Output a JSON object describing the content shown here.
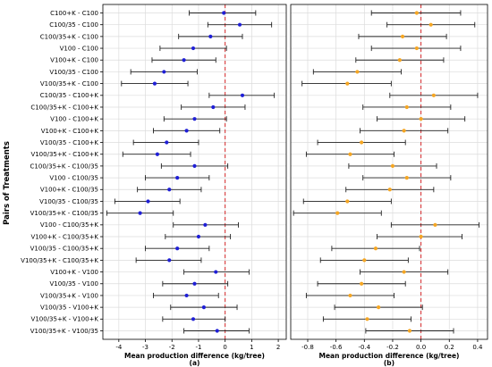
{
  "figure": {
    "ylabel": "Pairs of Treatments"
  },
  "chart_data": [
    {
      "type": "scatter",
      "panel_label": "(a)",
      "xlabel": "Mean production difference (kg/tree)",
      "xlim": [
        -4.6,
        2.3
      ],
      "xticks": [
        -4,
        -3,
        -2,
        -1,
        0,
        1,
        2
      ],
      "grid": true,
      "reference_line": 0,
      "reference_line_color": "#d62728",
      "marker_color": "#1f1fd6",
      "errorbar_color": "#222222",
      "categories": [
        "C100+K - C100",
        "C100/35 - C100",
        "C100/35+K - C100",
        "V100 - C100",
        "V100+K - C100",
        "V100/35 - C100",
        "V100/35+K - C100",
        "C100/35 - C100+K",
        "C100/35+K - C100+K",
        "V100 - C100+K",
        "V100+K - C100+K",
        "V100/35 - C100+K",
        "V100/35+K - C100+K",
        "C100/35+K - C100/35",
        "V100 - C100/35",
        "V100+K - C100/35",
        "V100/35 - C100/35",
        "V100/35+K - C100/35",
        "V100 - C100/35+K",
        "V100+K - C100/35+K",
        "V100/35 - C100/35+K",
        "V100/35+K - C100/35+K",
        "V100+K - V100",
        "V100/35 - V100",
        "V100/35+K - V100",
        "V100/35 - V100+K",
        "V100/35+K - V100+K",
        "V100/35+K - V100/35"
      ],
      "means": [
        -0.05,
        0.55,
        -0.55,
        -1.2,
        -1.55,
        -2.3,
        -2.65,
        0.65,
        -0.45,
        -1.15,
        -1.45,
        -2.2,
        -2.55,
        -1.15,
        -1.8,
        -2.1,
        -2.9,
        -3.2,
        -0.75,
        -1.0,
        -1.8,
        -2.1,
        -0.35,
        -1.15,
        -1.45,
        -0.8,
        -1.2,
        -0.3
      ],
      "lower": [
        -1.35,
        -0.65,
        -1.75,
        -2.45,
        -2.75,
        -3.55,
        -3.9,
        -0.6,
        -1.65,
        -2.3,
        -2.7,
        -3.45,
        -3.85,
        -2.4,
        -3.0,
        -3.3,
        -4.15,
        -4.45,
        -1.95,
        -2.25,
        -3.0,
        -3.35,
        -1.55,
        -2.35,
        -2.7,
        -2.05,
        -2.35,
        -1.55
      ],
      "upper": [
        1.15,
        1.75,
        0.65,
        0.05,
        -0.35,
        -1.05,
        -1.4,
        1.85,
        0.75,
        0.05,
        -0.2,
        -1.0,
        -1.3,
        0.1,
        -0.6,
        -0.9,
        -1.7,
        -1.95,
        0.5,
        0.2,
        -0.6,
        -0.9,
        0.9,
        0.1,
        -0.25,
        0.45,
        0.0,
        0.9
      ]
    },
    {
      "type": "scatter",
      "panel_label": "(b)",
      "xlabel": "Mean production difference (kg/tree)",
      "xlim": [
        -0.92,
        0.47
      ],
      "xticks": [
        -0.8,
        -0.6,
        -0.4,
        -0.2,
        0.0,
        0.2,
        0.4
      ],
      "grid": true,
      "reference_line": 0,
      "reference_line_color": "#d62728",
      "marker_color": "#f5a623",
      "errorbar_color": "#222222",
      "means": [
        -0.03,
        0.07,
        -0.13,
        -0.03,
        -0.15,
        -0.45,
        -0.52,
        0.09,
        -0.1,
        0.0,
        -0.12,
        -0.42,
        -0.5,
        -0.2,
        -0.1,
        -0.22,
        -0.52,
        -0.59,
        0.1,
        0.0,
        -0.32,
        -0.4,
        -0.12,
        -0.42,
        -0.5,
        -0.3,
        -0.38,
        -0.08
      ],
      "lower": [
        -0.35,
        -0.24,
        -0.44,
        -0.35,
        -0.46,
        -0.76,
        -0.84,
        -0.22,
        -0.41,
        -0.31,
        -0.43,
        -0.73,
        -0.81,
        -0.51,
        -0.41,
        -0.53,
        -0.83,
        -0.9,
        -0.21,
        -0.31,
        -0.63,
        -0.71,
        -0.43,
        -0.73,
        -0.81,
        -0.61,
        -0.69,
        -0.39
      ],
      "upper": [
        0.28,
        0.38,
        0.18,
        0.28,
        0.16,
        -0.14,
        -0.21,
        0.4,
        0.21,
        0.31,
        0.19,
        -0.11,
        -0.19,
        0.11,
        0.21,
        0.09,
        -0.21,
        -0.28,
        0.41,
        0.29,
        -0.01,
        -0.09,
        0.19,
        -0.11,
        -0.19,
        0.01,
        -0.07,
        0.23
      ]
    }
  ]
}
